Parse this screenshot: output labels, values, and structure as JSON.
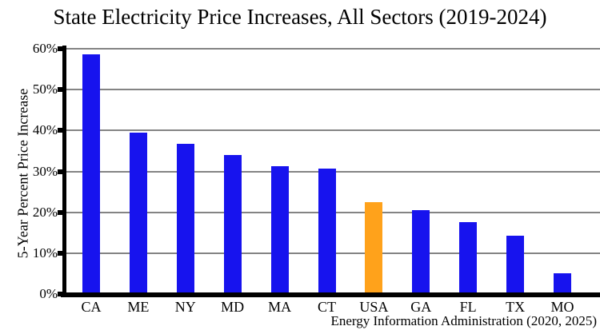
{
  "chart_data": {
    "type": "bar",
    "title": "State Electricity Price Increases, All Sectors (2019-2024)",
    "ylabel": "5-Year Percent Price Increase",
    "xlabel": "",
    "source_note": "Energy Information Administration (2020, 2025)",
    "categories": [
      "CA",
      "ME",
      "NY",
      "MD",
      "MA",
      "CT",
      "USA",
      "GA",
      "FL",
      "TX",
      "MO"
    ],
    "values": [
      58.6,
      39.4,
      36.7,
      34.1,
      31.2,
      30.6,
      22.4,
      20.5,
      17.5,
      14.2,
      5.0
    ],
    "ylim": [
      0,
      60
    ],
    "ytick_labels": [
      "0%",
      "10%",
      "20%",
      "30%",
      "40%",
      "50%",
      "60%"
    ],
    "grid": true,
    "legend": false,
    "bar_color": "#1713ee",
    "highlight_color": "#ffa21b",
    "highlight_category": "USA",
    "gridline_color": "#848484",
    "axis_color": "#000000"
  }
}
